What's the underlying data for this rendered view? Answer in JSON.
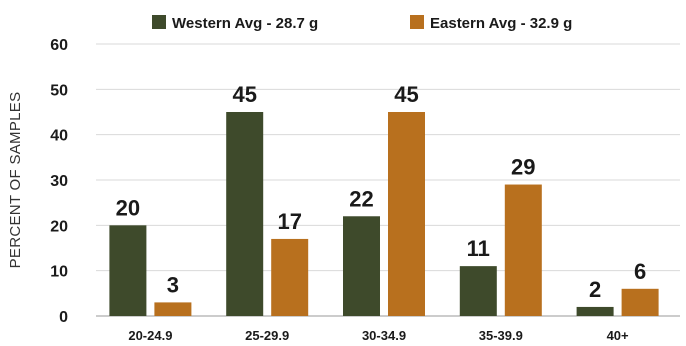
{
  "chart_data": {
    "type": "bar",
    "title": "",
    "xlabel": "",
    "ylabel": "PERCENT OF SAMPLES",
    "ylim": [
      0,
      60
    ],
    "yticks": [
      0,
      10,
      20,
      30,
      40,
      50,
      60
    ],
    "grid": true,
    "legend_position": "top-center",
    "categories": [
      "20-24.9",
      "25-29.9",
      "30-34.9",
      "35-39.9",
      "40+"
    ],
    "series": [
      {
        "name": "Western Avg - 28.7 g",
        "color": "#3e4a2b",
        "values": [
          20,
          45,
          22,
          11,
          2
        ]
      },
      {
        "name": "Eastern Avg - 32.9 g",
        "color": "#b8701e",
        "values": [
          3,
          17,
          45,
          29,
          6
        ]
      }
    ]
  }
}
